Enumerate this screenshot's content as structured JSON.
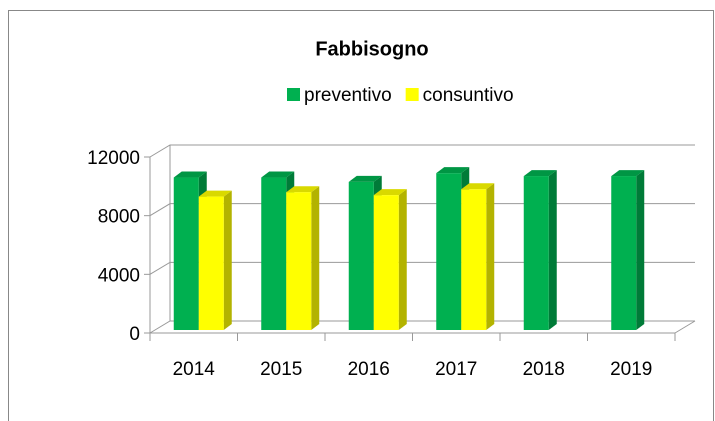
{
  "chart_data": {
    "type": "bar",
    "title": "Fabbisogno",
    "categories": [
      "2014",
      "2015",
      "2016",
      "2017",
      "2018",
      "2019"
    ],
    "series": [
      {
        "name": "preventivo",
        "color": "#00b050",
        "values": [
          10600,
          10600,
          10300,
          10900,
          10700,
          10700
        ]
      },
      {
        "name": "consuntivo",
        "color": "#ffff00",
        "values": [
          9300,
          9600,
          9400,
          9800,
          null,
          null
        ]
      }
    ],
    "ylim": [
      0,
      12000
    ],
    "yticks": [
      0,
      4000,
      8000,
      12000
    ],
    "grid": true,
    "legend": "top"
  }
}
